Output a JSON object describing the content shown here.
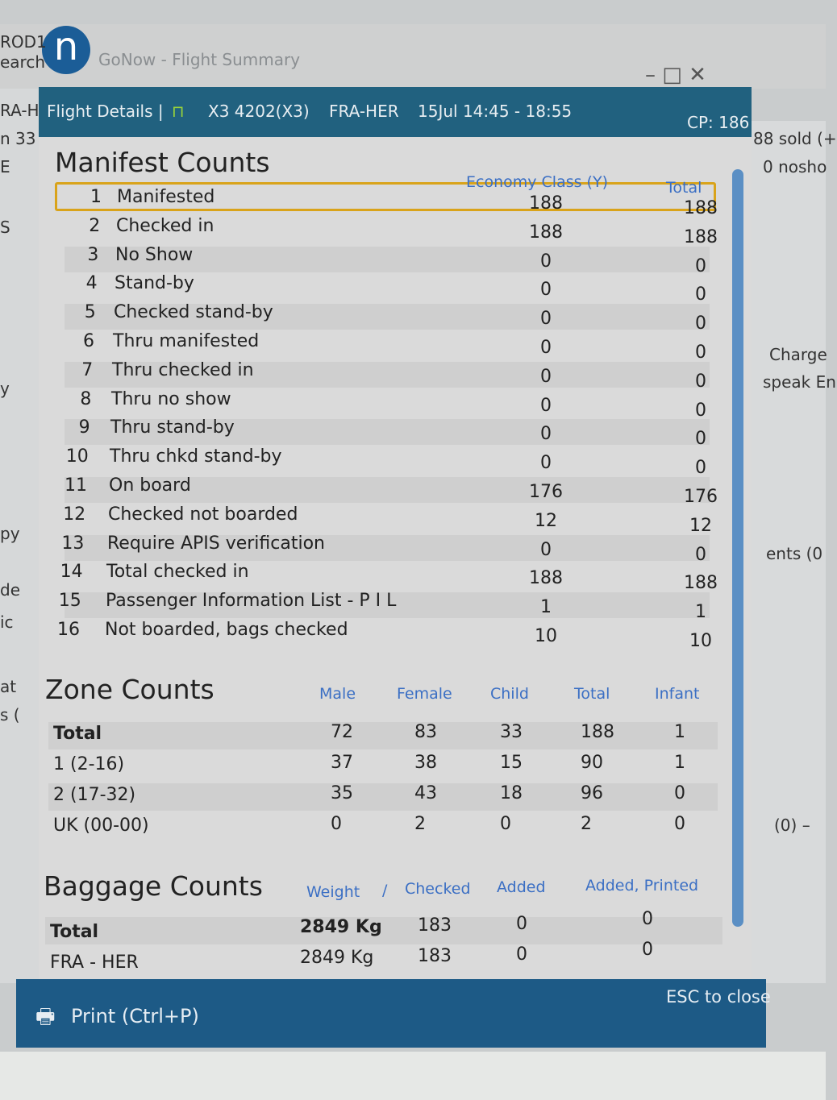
{
  "window": {
    "title": "GoNow - Flight Summary",
    "controls": "– □ ✕"
  },
  "background_fragments": {
    "left": [
      "ROD1",
      "earch",
      "RA-H",
      "n 33",
      "E",
      "S",
      "y",
      "py",
      "de",
      "ic",
      "at",
      "s ("
    ],
    "right": [
      "88 sold (+",
      "0 nosho",
      "Charge",
      "speak En",
      "ents (0",
      "(0) –"
    ]
  },
  "header": {
    "label": "Flight Details |",
    "icon": "door-icon",
    "flight": "X3 4202(X3)",
    "route": "FRA-HER",
    "date_time": "15Jul 14:45 - 18:55",
    "cp": "CP: 186"
  },
  "manifest": {
    "title": "Manifest Counts",
    "columns": [
      "Economy Class (Y)",
      "Total"
    ],
    "rows": [
      [
        "1",
        "Manifested",
        "188",
        "188"
      ],
      [
        "2",
        "Checked in",
        "188",
        "188"
      ],
      [
        "3",
        "No Show",
        "0",
        "0"
      ],
      [
        "4",
        "Stand-by",
        "0",
        "0"
      ],
      [
        "5",
        "Checked stand-by",
        "0",
        "0"
      ],
      [
        "6",
        "Thru manifested",
        "0",
        "0"
      ],
      [
        "7",
        "Thru checked in",
        "0",
        "0"
      ],
      [
        "8",
        "Thru no show",
        "0",
        "0"
      ],
      [
        "9",
        "Thru stand-by",
        "0",
        "0"
      ],
      [
        "10",
        "Thru chkd stand-by",
        "0",
        "0"
      ],
      [
        "11",
        "On board",
        "176",
        "176"
      ],
      [
        "12",
        "Checked not boarded",
        "12",
        "12"
      ],
      [
        "13",
        "Require APIS verification",
        "0",
        "0"
      ],
      [
        "14",
        "Total checked in",
        "188",
        "188"
      ],
      [
        "15",
        "Passenger Information List - P I L",
        "1",
        "1"
      ],
      [
        "16",
        "Not boarded, bags checked",
        "10",
        "10"
      ]
    ]
  },
  "zones": {
    "title": "Zone Counts",
    "columns": [
      "Male",
      "Female",
      "Child",
      "Total",
      "Infant"
    ],
    "rows": [
      [
        "Total",
        "72",
        "83",
        "33",
        "188",
        "1"
      ],
      [
        "1 (2-16)",
        "37",
        "38",
        "15",
        "90",
        "1"
      ],
      [
        "2 (17-32)",
        "35",
        "43",
        "18",
        "96",
        "0"
      ],
      [
        "UK (00-00)",
        "0",
        "2",
        "0",
        "2",
        "0"
      ]
    ]
  },
  "baggage": {
    "title": "Baggage Counts",
    "columns": [
      "Weight",
      "/",
      "Checked",
      "Added",
      "Added, Printed"
    ],
    "rows": [
      [
        "Total",
        "2849 Kg",
        "183",
        "0",
        "0"
      ],
      [
        "FRA - HER",
        "2849 Kg",
        "183",
        "0",
        "0"
      ]
    ]
  },
  "footer": {
    "print": "Print (Ctrl+P)",
    "close_hint": "ESC to close"
  },
  "colors": {
    "header": "#21617f",
    "footer": "#1d5a86",
    "highlight": "#d9a31a",
    "column_header": "#3b6fc4"
  }
}
